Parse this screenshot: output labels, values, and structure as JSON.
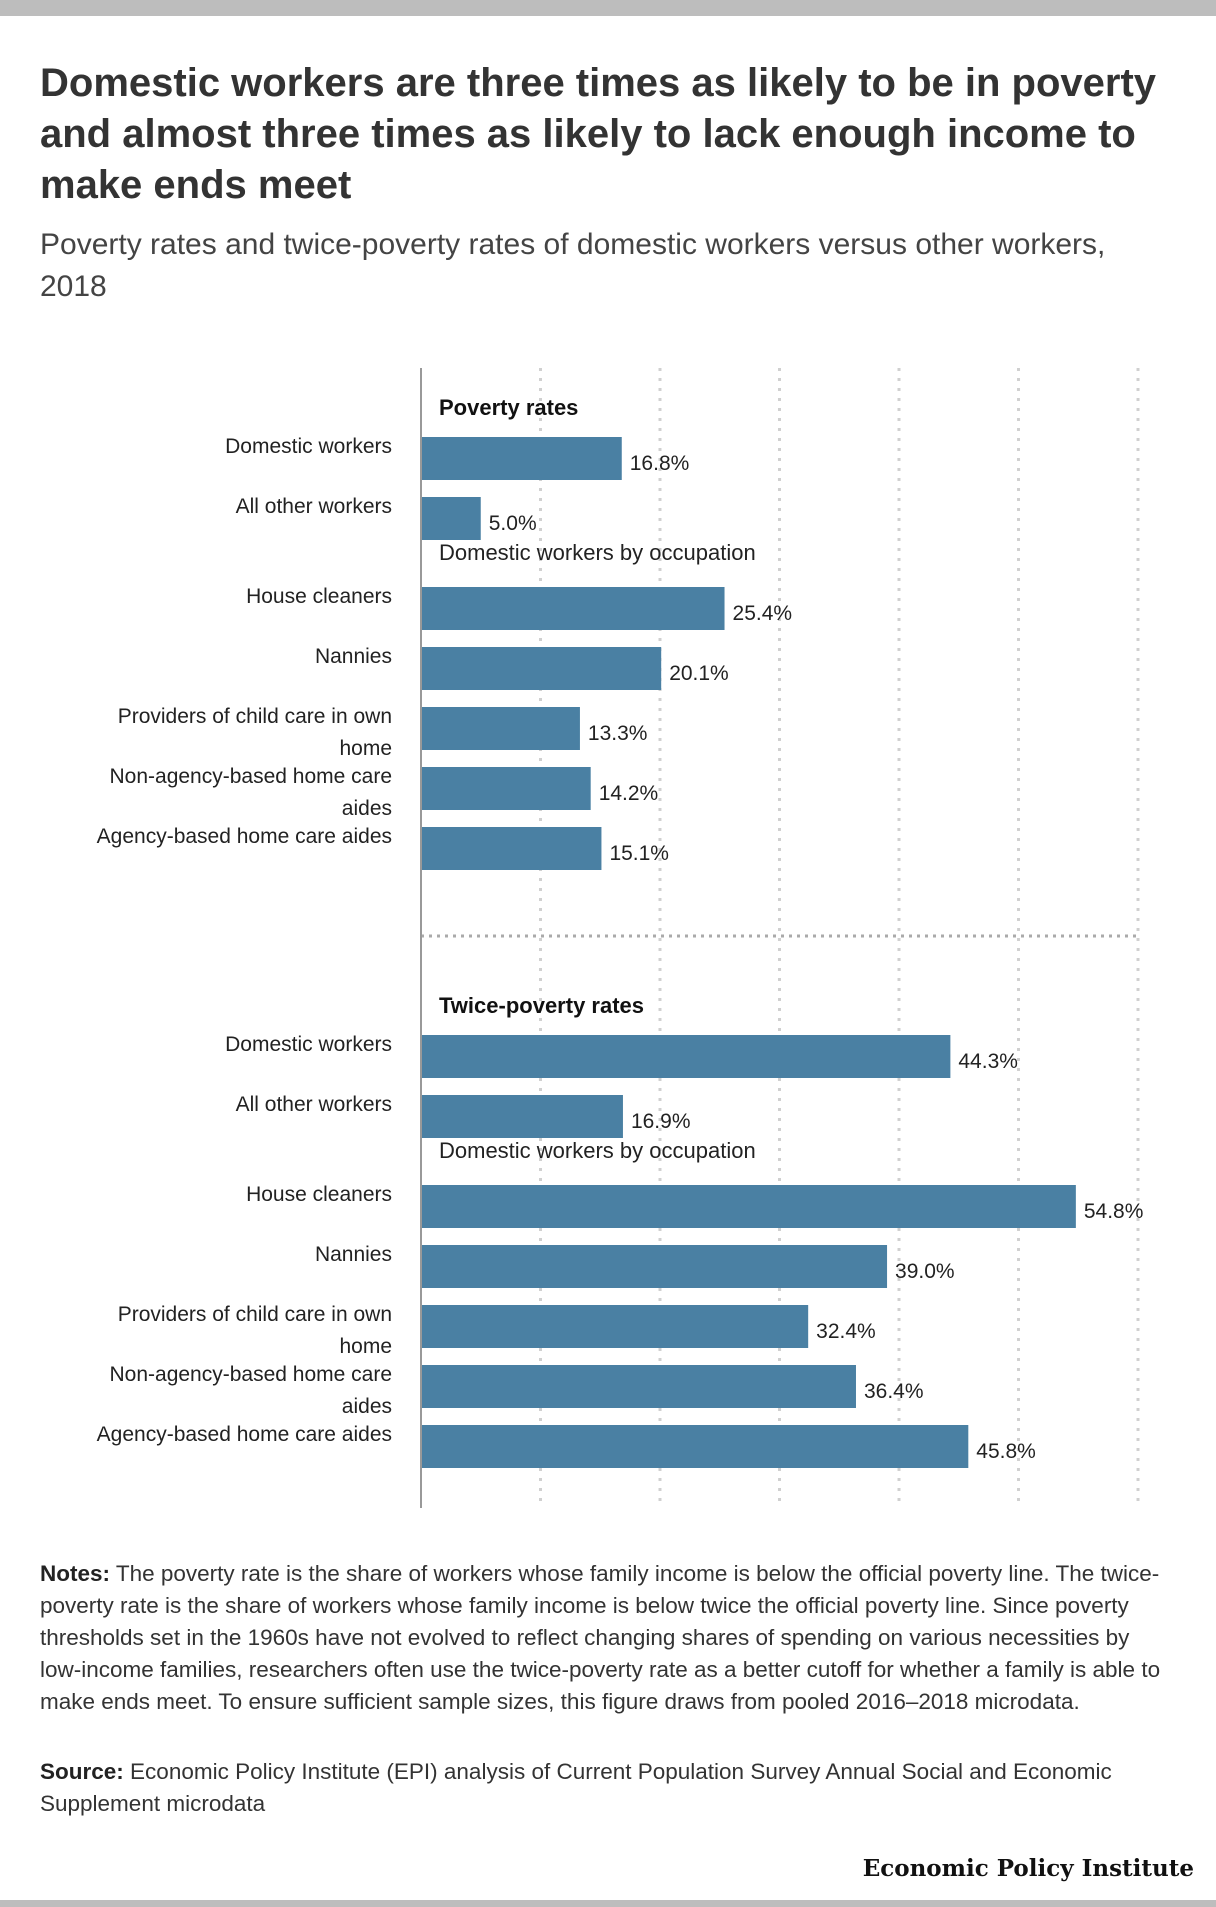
{
  "title": "Domestic workers are three times as likely to be in poverty and almost three times as likely to lack enough income to make ends meet",
  "subtitle": "Poverty rates and twice-poverty rates of domestic workers versus other workers, 2018",
  "notes_label": "Notes:",
  "notes_text": "The poverty rate is the share of workers whose family income is below the official poverty line. The twice-poverty rate is the share of workers whose family income is below twice the official poverty line. Since poverty thresholds set in the 1960s have not evolved to reflect changing shares of spending on various necessities by low-income families, researchers often use the twice-poverty rate as a better cutoff for whether a family is able to make ends meet. To ensure sufficient sample sizes, this figure draws from pooled 2016–2018 microdata.",
  "source_label": "Source:",
  "source_text": "Economic Policy Institute (EPI) analysis of Current Population Survey Annual Social and Economic Supplement microdata",
  "logo_text": "Economic Policy Institute",
  "colors": {
    "bar": "#4a80a3",
    "grid": "#d0d0d0",
    "axis": "#999999"
  },
  "chart_data": {
    "type": "bar",
    "orientation": "horizontal",
    "xlim": [
      0,
      60
    ],
    "grid": true,
    "value_suffix": "%",
    "sections": [
      {
        "heading": "Poverty rates",
        "subgroup_heading": "Domestic workers by occupation",
        "top_items": [
          {
            "label": "Domestic workers",
            "value": 16.8
          },
          {
            "label": "All other workers",
            "value": 5.0
          }
        ],
        "sub_items": [
          {
            "label": "House cleaners",
            "value": 25.4
          },
          {
            "label": "Nannies",
            "value": 20.1
          },
          {
            "label": "Providers of child care in own home",
            "value": 13.3
          },
          {
            "label": "Non-agency-based home care aides",
            "value": 14.2
          },
          {
            "label": "Agency-based home care aides",
            "value": 15.1
          }
        ]
      },
      {
        "heading": "Twice-poverty rates",
        "subgroup_heading": "Domestic workers by occupation",
        "top_items": [
          {
            "label": "Domestic workers",
            "value": 44.3
          },
          {
            "label": "All other workers",
            "value": 16.9
          }
        ],
        "sub_items": [
          {
            "label": "House cleaners",
            "value": 54.8
          },
          {
            "label": "Nannies",
            "value": 39.0
          },
          {
            "label": "Providers of child care in own home",
            "value": 32.4
          },
          {
            "label": "Non-agency-based home care aides",
            "value": 36.4
          },
          {
            "label": "Agency-based home care aides",
            "value": 45.8
          }
        ]
      }
    ]
  }
}
